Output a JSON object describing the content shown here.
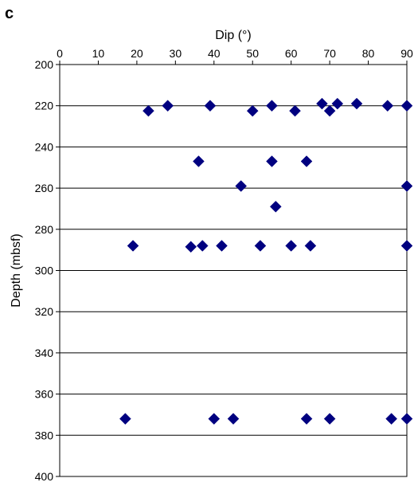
{
  "panel_label": "c",
  "chart_data": {
    "type": "scatter",
    "xlabel": "Dip (°)",
    "ylabel": "Depth (mbsf)",
    "xlim": [
      0,
      90
    ],
    "ylim": [
      200,
      400
    ],
    "y_inverted": true,
    "x_axis_position": "top",
    "x_ticks": [
      0,
      10,
      20,
      30,
      40,
      50,
      60,
      70,
      80,
      90
    ],
    "y_ticks": [
      200,
      220,
      240,
      260,
      280,
      300,
      320,
      340,
      360,
      380,
      400
    ],
    "horizontal_gridlines": true,
    "marker": "diamond",
    "marker_color": "#000080",
    "series": [
      {
        "points": [
          {
            "x": 23,
            "y": 222.5
          },
          {
            "x": 28,
            "y": 220
          },
          {
            "x": 39,
            "y": 220
          },
          {
            "x": 50,
            "y": 222.5
          },
          {
            "x": 55,
            "y": 220
          },
          {
            "x": 61,
            "y": 222.5
          },
          {
            "x": 68,
            "y": 219
          },
          {
            "x": 70,
            "y": 222.5
          },
          {
            "x": 72,
            "y": 219
          },
          {
            "x": 77,
            "y": 219
          },
          {
            "x": 85,
            "y": 220
          },
          {
            "x": 90,
            "y": 220
          },
          {
            "x": 36,
            "y": 247
          },
          {
            "x": 55,
            "y": 247
          },
          {
            "x": 64,
            "y": 247
          },
          {
            "x": 47,
            "y": 259
          },
          {
            "x": 90,
            "y": 259
          },
          {
            "x": 56,
            "y": 269
          },
          {
            "x": 19,
            "y": 288
          },
          {
            "x": 34,
            "y": 288.5
          },
          {
            "x": 37,
            "y": 288
          },
          {
            "x": 42,
            "y": 288
          },
          {
            "x": 52,
            "y": 288
          },
          {
            "x": 60,
            "y": 288
          },
          {
            "x": 65,
            "y": 288
          },
          {
            "x": 90,
            "y": 288
          },
          {
            "x": 17,
            "y": 372
          },
          {
            "x": 40,
            "y": 372
          },
          {
            "x": 45,
            "y": 372
          },
          {
            "x": 64,
            "y": 372
          },
          {
            "x": 70,
            "y": 372
          },
          {
            "x": 86,
            "y": 372
          },
          {
            "x": 90,
            "y": 372
          }
        ]
      }
    ]
  }
}
